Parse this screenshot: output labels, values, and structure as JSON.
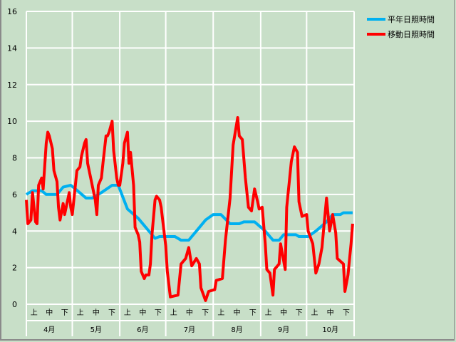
{
  "chart_data": {
    "type": "line",
    "ylim": [
      0,
      16
    ],
    "yticks": [
      0,
      2,
      4,
      6,
      8,
      10,
      12,
      14,
      16
    ],
    "grid": true,
    "legend_placement": "top-right",
    "x_range": [
      "4/1",
      "10/31"
    ],
    "months": [
      "4月",
      "5月",
      "6月",
      "7月",
      "8月",
      "9月",
      "10月"
    ],
    "dekads": [
      "上",
      "中",
      "下"
    ],
    "series": [
      {
        "name": "平年日照時間",
        "color": "#00b0f0",
        "points": [
          [
            "4/1",
            6.0
          ],
          [
            "4/5",
            6.2
          ],
          [
            "4/11",
            6.2
          ],
          [
            "4/14",
            6.0
          ],
          [
            "4/21",
            6.0
          ],
          [
            "4/25",
            6.4
          ],
          [
            "4/30",
            6.5
          ],
          [
            "5/3",
            6.3
          ],
          [
            "5/10",
            5.8
          ],
          [
            "5/14",
            5.8
          ],
          [
            "5/20",
            6.1
          ],
          [
            "5/27",
            6.5
          ],
          [
            "5/31",
            6.5
          ],
          [
            "6/6",
            5.2
          ],
          [
            "6/13",
            4.7
          ],
          [
            "6/20",
            4.0
          ],
          [
            "6/24",
            3.6
          ],
          [
            "6/27",
            3.7
          ],
          [
            "7/7",
            3.7
          ],
          [
            "7/11",
            3.5
          ],
          [
            "7/16",
            3.5
          ],
          [
            "7/21",
            4.0
          ],
          [
            "7/27",
            4.6
          ],
          [
            "8/1",
            4.9
          ],
          [
            "8/6",
            4.9
          ],
          [
            "8/12",
            4.4
          ],
          [
            "8/18",
            4.4
          ],
          [
            "8/21",
            4.5
          ],
          [
            "8/28",
            4.5
          ],
          [
            "9/4",
            4.0
          ],
          [
            "9/9",
            3.5
          ],
          [
            "9/13",
            3.5
          ],
          [
            "9/16",
            3.8
          ],
          [
            "9/24",
            3.8
          ],
          [
            "9/26",
            3.7
          ],
          [
            "10/2",
            3.7
          ],
          [
            "10/7",
            4.0
          ],
          [
            "10/14",
            4.5
          ],
          [
            "10/18",
            4.9
          ],
          [
            "10/23",
            4.9
          ],
          [
            "10/25",
            5.0
          ],
          [
            "10/31",
            5.0
          ]
        ]
      },
      {
        "name": "移動日照時間",
        "color": "#ff0000",
        "points": [
          [
            "4/1",
            5.7
          ],
          [
            "4/2",
            4.4
          ],
          [
            "4/4",
            4.6
          ],
          [
            "4/5",
            6.1
          ],
          [
            "4/7",
            4.5
          ],
          [
            "4/8",
            4.4
          ],
          [
            "4/9",
            6.5
          ],
          [
            "4/11",
            6.9
          ],
          [
            "4/12",
            6.3
          ],
          [
            "4/14",
            8.8
          ],
          [
            "4/15",
            9.4
          ],
          [
            "4/16",
            9.2
          ],
          [
            "4/18",
            8.5
          ],
          [
            "4/19",
            7.3
          ],
          [
            "4/21",
            6.7
          ],
          [
            "4/22",
            5.3
          ],
          [
            "4/23",
            4.6
          ],
          [
            "4/25",
            5.5
          ],
          [
            "4/26",
            4.9
          ],
          [
            "4/28",
            5.7
          ],
          [
            "4/29",
            6.1
          ],
          [
            "4/30",
            5.3
          ],
          [
            "5/1",
            4.9
          ],
          [
            "5/3",
            6.5
          ],
          [
            "5/4",
            7.3
          ],
          [
            "5/6",
            7.5
          ],
          [
            "5/7",
            8.1
          ],
          [
            "5/9",
            8.8
          ],
          [
            "5/10",
            9.0
          ],
          [
            "5/11",
            7.7
          ],
          [
            "5/13",
            6.9
          ],
          [
            "5/14",
            6.5
          ],
          [
            "5/16",
            5.7
          ],
          [
            "5/17",
            4.9
          ],
          [
            "5/18",
            6.5
          ],
          [
            "5/20",
            6.9
          ],
          [
            "5/21",
            7.7
          ],
          [
            "5/23",
            9.2
          ],
          [
            "5/24",
            9.2
          ],
          [
            "5/25",
            9.4
          ],
          [
            "5/27",
            10.0
          ],
          [
            "5/28",
            8.4
          ],
          [
            "5/30",
            6.9
          ],
          [
            "5/31",
            6.5
          ],
          [
            "6/1",
            6.5
          ],
          [
            "6/3",
            7.7
          ],
          [
            "6/4",
            8.8
          ],
          [
            "6/6",
            9.4
          ],
          [
            "6/7",
            7.7
          ],
          [
            "6/8",
            8.3
          ],
          [
            "6/10",
            6.5
          ],
          [
            "6/11",
            4.2
          ],
          [
            "6/13",
            3.8
          ],
          [
            "6/14",
            3.4
          ],
          [
            "6/15",
            1.8
          ],
          [
            "6/17",
            1.4
          ],
          [
            "6/18",
            1.6
          ],
          [
            "6/20",
            1.6
          ],
          [
            "6/21",
            2.2
          ],
          [
            "6/22",
            3.8
          ],
          [
            "6/24",
            5.7
          ],
          [
            "6/25",
            5.9
          ],
          [
            "6/27",
            5.7
          ],
          [
            "6/28",
            5.3
          ],
          [
            "6/29",
            4.6
          ],
          [
            "7/1",
            3.2
          ],
          [
            "7/2",
            1.8
          ],
          [
            "7/4",
            0.4
          ],
          [
            "7/9",
            0.5
          ],
          [
            "7/11",
            2.2
          ],
          [
            "7/14",
            2.5
          ],
          [
            "7/16",
            3.1
          ],
          [
            "7/18",
            2.1
          ],
          [
            "7/21",
            2.5
          ],
          [
            "7/23",
            2.2
          ],
          [
            "7/24",
            0.9
          ],
          [
            "7/27",
            0.2
          ],
          [
            "7/29",
            0.7
          ],
          [
            "8/2",
            0.8
          ],
          [
            "8/3",
            1.3
          ],
          [
            "8/7",
            1.4
          ],
          [
            "8/9",
            3.5
          ],
          [
            "8/12",
            5.8
          ],
          [
            "8/14",
            8.7
          ],
          [
            "8/17",
            10.2
          ],
          [
            "8/18",
            9.2
          ],
          [
            "8/20",
            9.0
          ],
          [
            "8/22",
            6.9
          ],
          [
            "8/24",
            5.3
          ],
          [
            "8/26",
            5.1
          ],
          [
            "8/28",
            6.3
          ],
          [
            "8/30",
            5.6
          ],
          [
            "8/31",
            5.2
          ],
          [
            "9/2",
            5.3
          ],
          [
            "9/4",
            3.3
          ],
          [
            "9/5",
            1.9
          ],
          [
            "9/7",
            1.7
          ],
          [
            "9/9",
            0.5
          ],
          [
            "9/10",
            1.9
          ],
          [
            "9/13",
            2.2
          ],
          [
            "9/14",
            3.3
          ],
          [
            "9/17",
            1.9
          ],
          [
            "9/18",
            5.3
          ],
          [
            "9/21",
            7.8
          ],
          [
            "9/23",
            8.6
          ],
          [
            "9/25",
            8.3
          ],
          [
            "9/26",
            5.6
          ],
          [
            "9/28",
            4.8
          ],
          [
            "10/1",
            4.9
          ],
          [
            "10/2",
            4.0
          ],
          [
            "10/5",
            3.3
          ],
          [
            "10/7",
            1.7
          ],
          [
            "10/9",
            2.2
          ],
          [
            "10/11",
            3.1
          ],
          [
            "10/12",
            4.0
          ],
          [
            "10/14",
            5.8
          ],
          [
            "10/16",
            4.0
          ],
          [
            "10/18",
            4.9
          ],
          [
            "10/20",
            3.9
          ],
          [
            "10/21",
            2.5
          ],
          [
            "10/25",
            2.2
          ],
          [
            "10/26",
            0.7
          ],
          [
            "10/28",
            1.6
          ],
          [
            "10/30",
            3.3
          ],
          [
            "10/31",
            4.4
          ]
        ]
      }
    ]
  }
}
